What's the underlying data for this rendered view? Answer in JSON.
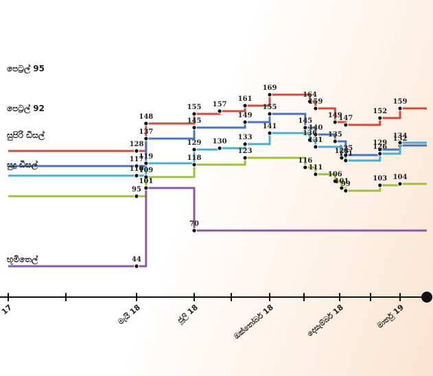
{
  "chart_data": {
    "type": "line",
    "title": "",
    "xlabel": "",
    "ylabel": "",
    "grid": false,
    "x_ticks": [
      "17",
      "මැයි 18",
      "ජූලි 18",
      "ඔක්තෝබර් 18",
      "දෙසැම්බර් 18",
      "මාර්තු 19"
    ],
    "x_tick_dates": [
      "2017-12",
      "2018-05",
      "2018-07",
      "2018-10",
      "2018-12",
      "2019-03"
    ],
    "series": [
      {
        "name": "පෙට්‍රල් 95",
        "color": "#d24a3c",
        "points": [
          {
            "date": "2018-05-01",
            "value": 128
          },
          {
            "date": "2018-05-11",
            "value": 148
          },
          {
            "date": "2018-07-01",
            "value": 155
          },
          {
            "date": "2018-08-01",
            "value": 157
          },
          {
            "date": "2018-09-01",
            "value": 161
          },
          {
            "date": "2018-10-01",
            "value": 169
          },
          {
            "date": "2018-11-05",
            "value": 164
          },
          {
            "date": "2018-11-10",
            "value": 159
          },
          {
            "date": "2018-11-27",
            "value": 149
          },
          {
            "date": "2018-12-10",
            "value": 147
          },
          {
            "date": "2019-01-30",
            "value": 152
          },
          {
            "date": "2019-03-01",
            "value": 159
          }
        ]
      },
      {
        "name": "පෙට්‍රල් 92",
        "color": "#4a74c0",
        "points": [
          {
            "date": "2018-05-01",
            "value": 117
          },
          {
            "date": "2018-05-11",
            "value": 137
          },
          {
            "date": "2018-07-01",
            "value": 145
          },
          {
            "date": "2018-09-01",
            "value": 149
          },
          {
            "date": "2018-10-01",
            "value": 155
          },
          {
            "date": "2018-11-01",
            "value": 145
          },
          {
            "date": "2018-11-10",
            "value": 140
          },
          {
            "date": "2018-11-27",
            "value": 135
          },
          {
            "date": "2018-12-10",
            "value": 125
          },
          {
            "date": "2019-01-30",
            "value": 129
          },
          {
            "date": "2019-03-01",
            "value": 132
          }
        ]
      },
      {
        "name": "සුපිරි ඩීසල්",
        "color": "#4aaed0",
        "points": [
          {
            "date": "2018-05-01",
            "value": 110
          },
          {
            "date": "2018-05-11",
            "value": 119
          },
          {
            "date": "2018-07-01",
            "value": 129
          },
          {
            "date": "2018-08-01",
            "value": 130
          },
          {
            "date": "2018-09-01",
            "value": 133
          },
          {
            "date": "2018-10-01",
            "value": 141
          },
          {
            "date": "2018-11-05",
            "value": 136
          },
          {
            "date": "2018-11-10",
            "value": 131
          },
          {
            "date": "2018-12-04",
            "value": 123
          },
          {
            "date": "2018-12-10",
            "value": 121
          },
          {
            "date": "2019-01-30",
            "value": 126
          },
          {
            "date": "2019-03-01",
            "value": 134
          }
        ]
      },
      {
        "name": "සුදු ඩීසල්",
        "color": "#9cc040",
        "points": [
          {
            "date": "2018-05-01",
            "value": 95
          },
          {
            "date": "2018-05-11",
            "value": 109
          },
          {
            "date": "2018-07-01",
            "value": 118
          },
          {
            "date": "2018-09-01",
            "value": 123
          },
          {
            "date": "2018-11-01",
            "value": 116
          },
          {
            "date": "2018-11-10",
            "value": 111
          },
          {
            "date": "2018-11-27",
            "value": 106
          },
          {
            "date": "2018-12-04",
            "value": 101
          },
          {
            "date": "2018-12-10",
            "value": 99
          },
          {
            "date": "2019-01-30",
            "value": 103
          },
          {
            "date": "2019-03-01",
            "value": 104
          }
        ]
      },
      {
        "name": "භූමිතෙල්",
        "color": "#8a5aa8",
        "points": [
          {
            "date": "2018-05-01",
            "value": 44
          },
          {
            "date": "2018-05-11",
            "value": 101
          },
          {
            "date": "2018-07-01",
            "value": 70
          }
        ]
      }
    ],
    "extra_labels": [
      {
        "series": 3,
        "text": "99"
      },
      {
        "series": 2,
        "text": "118"
      }
    ]
  }
}
